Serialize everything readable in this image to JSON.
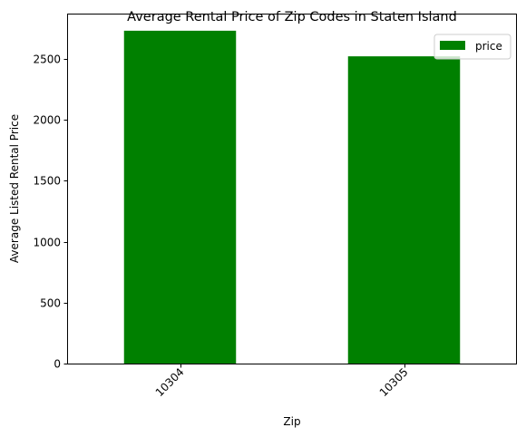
{
  "chart_data": {
    "type": "bar",
    "title": "Average Rental Price of Zip Codes in Staten Island",
    "xlabel": "Zip",
    "ylabel": "Average Listed Rental Price",
    "categories": [
      "10304",
      "10305"
    ],
    "series": [
      {
        "name": "price",
        "values": [
          2730,
          2520
        ],
        "color": "#008000"
      }
    ],
    "ylim": [
      0,
      2863
    ],
    "yticks": [
      0,
      500,
      1000,
      1500,
      2000,
      2500
    ],
    "xtick_rotation_deg": 45,
    "grid": false,
    "legend_position": "top-right"
  }
}
